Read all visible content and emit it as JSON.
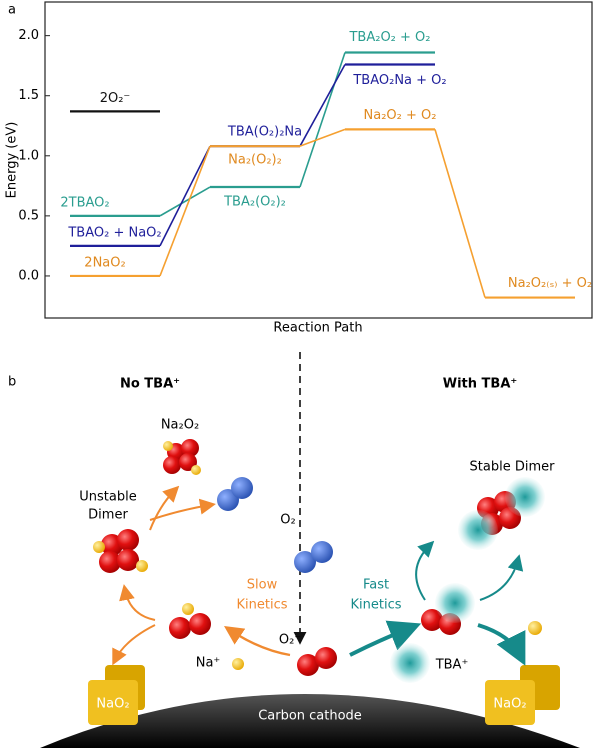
{
  "chart_data": {
    "type": "energy-levels",
    "panel": "a",
    "ylabel": "Energy (eV)",
    "xlabel": "Reaction Path",
    "categories": [
      null,
      null,
      null,
      null
    ],
    "ylim": [
      -0.35,
      2.28
    ],
    "yticks": [
      {
        "value": 0,
        "label": "0.0"
      },
      {
        "value": 0.5,
        "label": "0.5"
      },
      {
        "value": 1,
        "label": "1.0"
      },
      {
        "value": 1.5,
        "label": "1.5"
      },
      {
        "value": 2,
        "label": "2.0"
      }
    ],
    "series": [
      {
        "color": "#111111",
        "values": [
          1.37,
          null,
          null,
          null
        ],
        "labels": [
          "2O₂⁻",
          null,
          null,
          null
        ]
      },
      {
        "color": "#2a9d8f",
        "values": [
          0.5,
          0.74,
          1.86,
          null
        ],
        "labels": [
          "2TBAO₂",
          "TBA₂(O₂)₂",
          "TBA₂O₂ + O₂",
          null
        ]
      },
      {
        "color": "#1f1f9a",
        "values": [
          0.25,
          1.08,
          1.76,
          null
        ],
        "labels": [
          "TBAO₂ + NaO₂",
          "TBA(O₂)₂Na",
          "TBAO₂Na + O₂",
          null
        ]
      },
      {
        "color": "#f5a030",
        "values": [
          0,
          1.08,
          1.22,
          -0.18
        ],
        "labels": [
          "2NaO₂",
          "Na₂(O₂)₂",
          "Na₂O₂ + O₂",
          "Na₂O₂₍ₛ₎ + O₂"
        ]
      }
    ]
  },
  "diagram": {
    "panel": "b",
    "left_title": "No TBA⁺",
    "right_title": "With TBA⁺",
    "labels": {
      "na2o2": "Na₂O₂",
      "unstable": "Unstable",
      "dimer": "Dimer",
      "o2": "O₂",
      "slow1": "Slow",
      "slow2": "Kinetics",
      "fast1": "Fast",
      "fast2": "Kinetics",
      "superoxide": "O₂⁻",
      "na": "Na⁺",
      "tba": "TBA⁺",
      "stable": "Stable Dimer",
      "nao2_left": "NaO₂",
      "nao2_right": "NaO₂",
      "cathode": "Carbon cathode"
    }
  }
}
